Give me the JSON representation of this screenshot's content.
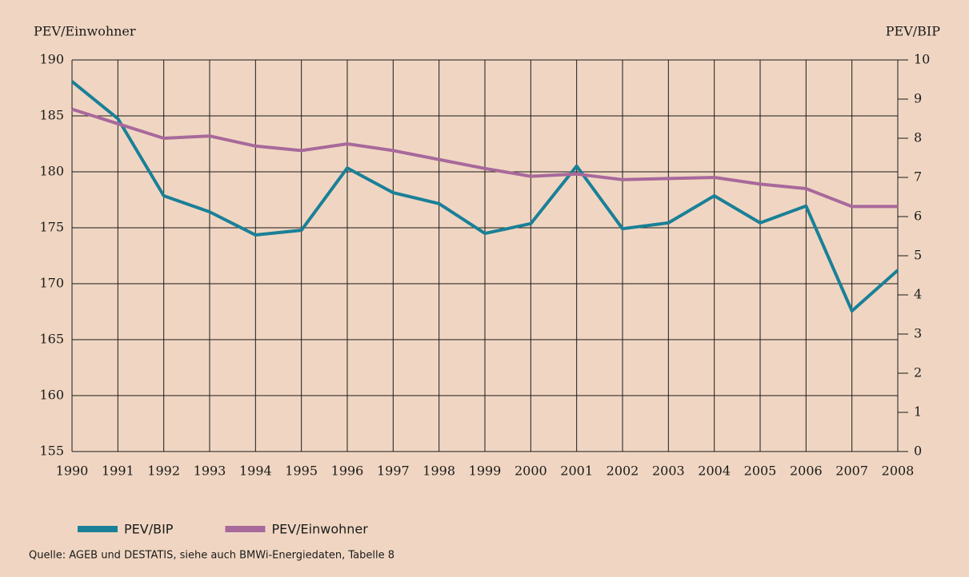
{
  "chart_data": {
    "type": "line",
    "y_label": "PEV/Einwohner",
    "y2_label": "PEV/BIP",
    "categories": [
      "1990",
      "1991",
      "1992",
      "1993",
      "1994",
      "1995",
      "1996",
      "1997",
      "1998",
      "1999",
      "2000",
      "2001",
      "2002",
      "2003",
      "2004",
      "2005",
      "2006",
      "2007",
      "2008"
    ],
    "series": [
      {
        "name": "PEV/BIP",
        "color": "#1a8097",
        "axis": "y2",
        "values": [
          9.45,
          8.5,
          6.53,
          6.12,
          5.53,
          5.65,
          7.24,
          6.61,
          6.33,
          5.57,
          5.82,
          7.29,
          5.69,
          5.84,
          6.53,
          5.84,
          6.27,
          3.59,
          4.63
        ]
      },
      {
        "name": "PEV/Einwohner",
        "color": "#a8699b",
        "axis": "y",
        "values": [
          185.6,
          184.3,
          183.0,
          183.2,
          182.3,
          181.9,
          182.5,
          181.9,
          181.1,
          180.3,
          179.6,
          179.8,
          179.3,
          179.4,
          179.5,
          178.9,
          178.5,
          176.9,
          176.9
        ]
      }
    ],
    "ylim": [
      155,
      190
    ],
    "yticks": [
      155,
      160,
      165,
      170,
      175,
      180,
      185,
      190
    ],
    "y2lim": [
      0,
      10
    ],
    "y2ticks": [
      0,
      1,
      2,
      3,
      4,
      5,
      6,
      7,
      8,
      9,
      10
    ],
    "grid": true,
    "legend": "bottom-left",
    "source": "Quelle: AGEB und DESTATIS, siehe auch BMWi-Energiedaten, Tabelle 8"
  }
}
